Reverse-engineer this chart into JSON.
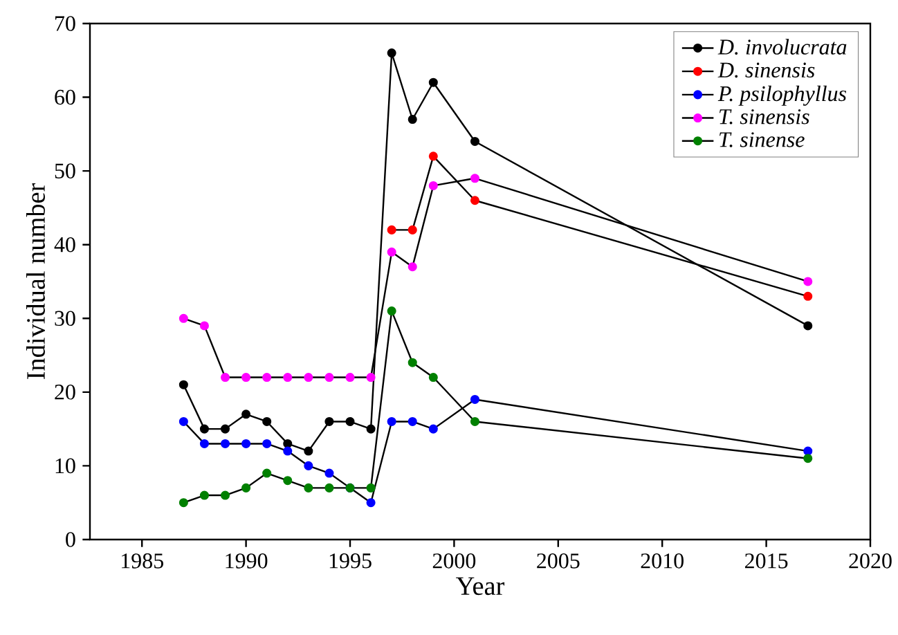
{
  "chart_data": {
    "type": "line",
    "xlabel": "Year",
    "ylabel": "Individual number",
    "xlim": [
      1982.5,
      2020
    ],
    "xticks": [
      1985,
      1990,
      1995,
      2000,
      2005,
      2010,
      2015,
      2020
    ],
    "ylim": [
      0,
      70
    ],
    "yticks": [
      0,
      10,
      20,
      30,
      40,
      50,
      60,
      70
    ],
    "legend": "top right",
    "marker": "circle",
    "line_style": "solid",
    "grid": false,
    "series": [
      {
        "name": "D. involucrata",
        "color": "#000000",
        "x": [
          1987,
          1988,
          1989,
          1990,
          1991,
          1992,
          1993,
          1994,
          1995,
          1996,
          1997,
          1998,
          1999,
          2001,
          2017
        ],
        "values": [
          21,
          15,
          15,
          17,
          16,
          13,
          12,
          16,
          16,
          15,
          66,
          57,
          62,
          54,
          29
        ]
      },
      {
        "name": "D. sinensis",
        "color": "#ff0000",
        "x": [
          1997,
          1998,
          1999,
          2001,
          2017
        ],
        "values": [
          42,
          42,
          52,
          46,
          33
        ]
      },
      {
        "name": "P. psilophyllus",
        "color": "#0000ff",
        "x": [
          1987,
          1988,
          1989,
          1990,
          1991,
          1992,
          1993,
          1994,
          1995,
          1996,
          1997,
          1998,
          1999,
          2001,
          2017
        ],
        "values": [
          16,
          13,
          13,
          13,
          13,
          12,
          10,
          9,
          7,
          5,
          16,
          16,
          15,
          19,
          12
        ]
      },
      {
        "name": "T. sinensis",
        "color": "#ff00ff",
        "x": [
          1987,
          1988,
          1989,
          1990,
          1991,
          1992,
          1993,
          1994,
          1995,
          1996,
          1997,
          1998,
          1999,
          2001,
          2017
        ],
        "values": [
          30,
          29,
          22,
          22,
          22,
          22,
          22,
          22,
          22,
          22,
          39,
          37,
          48,
          49,
          35
        ]
      },
      {
        "name": "T. sinense",
        "color": "#008000",
        "x": [
          1987,
          1988,
          1989,
          1990,
          1991,
          1992,
          1993,
          1994,
          1995,
          1996,
          1997,
          1998,
          1999,
          2001,
          2017
        ],
        "values": [
          5,
          6,
          6,
          7,
          9,
          8,
          7,
          7,
          7,
          7,
          31,
          24,
          22,
          16,
          11
        ]
      }
    ]
  }
}
